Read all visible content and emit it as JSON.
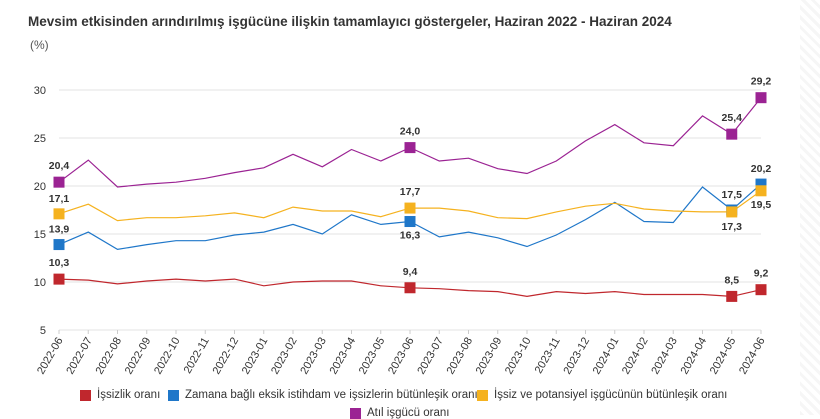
{
  "chart_data": {
    "type": "line",
    "title": "Mevsim etkisinden arındırılmış işgücüne ilişkin tamamlayıcı göstergeler, Haziran 2022 - Haziran 2024",
    "ylabel": "(%)",
    "xlabel": "",
    "ylim": [
      5,
      30
    ],
    "yticks": [
      "5",
      "10",
      "15",
      "20",
      "25",
      "30"
    ],
    "grid": true,
    "legend_position": "bottom",
    "categories": [
      "2022-06",
      "2022-07",
      "2022-08",
      "2022-09",
      "2022-10",
      "2022-11",
      "2022-12",
      "2023-01",
      "2023-02",
      "2023-03",
      "2023-04",
      "2023-05",
      "2023-06",
      "2023-07",
      "2023-08",
      "2023-09",
      "2023-10",
      "2023-11",
      "2023-12",
      "2024-01",
      "2024-02",
      "2024-03",
      "2024-04",
      "2024-05",
      "2024-06"
    ],
    "series": [
      {
        "name": "İşsizlik oranı",
        "color": "#c0272d",
        "values": [
          10.3,
          10.2,
          9.8,
          10.1,
          10.3,
          10.1,
          10.3,
          9.6,
          10.0,
          10.1,
          10.1,
          9.6,
          9.4,
          9.3,
          9.1,
          9.0,
          8.5,
          9.0,
          8.8,
          9.0,
          8.7,
          8.7,
          8.7,
          8.5,
          9.2
        ],
        "labels": [
          {
            "i": 0,
            "text": "10,3"
          },
          {
            "i": 12,
            "text": "9,4"
          },
          {
            "i": 23,
            "text": "8,5"
          },
          {
            "i": 24,
            "text": "9,2"
          }
        ]
      },
      {
        "name": "Zamana bağlı eksik istihdam ve işsizlerin bütünleşik oranı",
        "color": "#1f77c9",
        "values": [
          13.9,
          15.2,
          13.4,
          13.9,
          14.3,
          14.3,
          14.9,
          15.2,
          16.0,
          15.0,
          17.0,
          16.0,
          16.3,
          14.7,
          15.2,
          14.6,
          13.7,
          14.9,
          16.5,
          18.3,
          16.3,
          16.2,
          19.9,
          17.5,
          20.2
        ],
        "labels": [
          {
            "i": 0,
            "text": "13,9"
          },
          {
            "i": 12,
            "text": "16,3"
          },
          {
            "i": 23,
            "text": "17,5"
          },
          {
            "i": 24,
            "text": "20,2"
          }
        ]
      },
      {
        "name": "İşsiz ve potansiyel işgücünün bütünleşik oranı",
        "color": "#f5b21f",
        "values": [
          17.1,
          18.1,
          16.4,
          16.7,
          16.7,
          16.9,
          17.2,
          16.7,
          17.8,
          17.4,
          17.4,
          16.8,
          17.7,
          17.7,
          17.4,
          16.7,
          16.6,
          17.3,
          17.9,
          18.2,
          17.6,
          17.4,
          17.3,
          17.3,
          19.5
        ],
        "labels": [
          {
            "i": 0,
            "text": "17,1"
          },
          {
            "i": 12,
            "text": "17,7"
          },
          {
            "i": 23,
            "text": "17,3"
          },
          {
            "i": 24,
            "text": "19,5"
          }
        ]
      },
      {
        "name": "Atıl işgücü oranı",
        "color": "#9b2393",
        "values": [
          20.4,
          22.7,
          19.9,
          20.2,
          20.4,
          20.8,
          21.4,
          21.9,
          23.3,
          22.0,
          23.8,
          22.6,
          24.0,
          22.6,
          22.9,
          21.8,
          21.3,
          22.6,
          24.7,
          26.4,
          24.5,
          24.2,
          27.3,
          25.4,
          29.2
        ],
        "labels": [
          {
            "i": 0,
            "text": "20,4"
          },
          {
            "i": 12,
            "text": "24,0"
          },
          {
            "i": 23,
            "text": "25,4"
          },
          {
            "i": 24,
            "text": "29,2"
          }
        ]
      }
    ]
  }
}
